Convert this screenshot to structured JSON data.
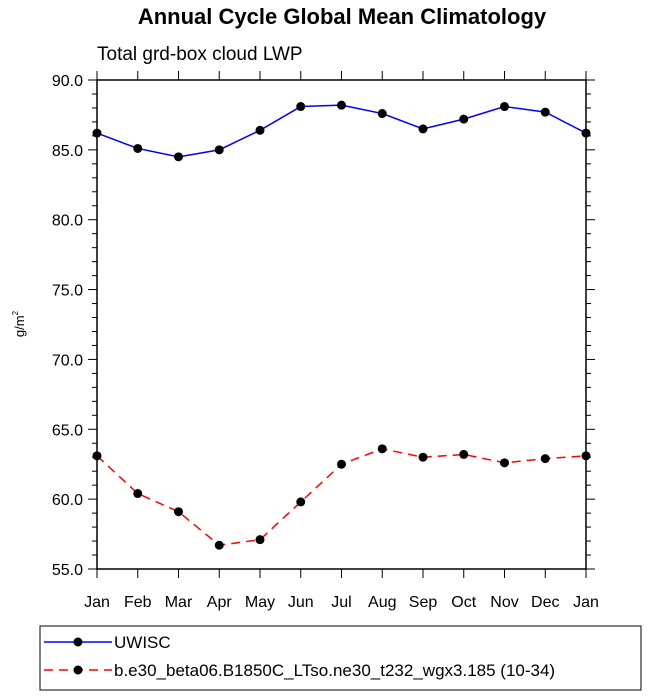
{
  "chart_data": {
    "type": "line",
    "title": "Annual Cycle Global Mean Climatology",
    "subtitle": "Total grd-box cloud LWP",
    "ylabel": "g/m",
    "ylabel_superscript": "2",
    "xlabel": "",
    "ylim": [
      55.0,
      90.0
    ],
    "yticks": [
      "55.0",
      "60.0",
      "65.0",
      "70.0",
      "75.0",
      "80.0",
      "85.0",
      "90.0"
    ],
    "categories": [
      "Jan",
      "Feb",
      "Mar",
      "Apr",
      "May",
      "Jun",
      "Jul",
      "Aug",
      "Sep",
      "Oct",
      "Nov",
      "Dec",
      "Jan"
    ],
    "grid": false,
    "legend_position": "bottom",
    "series": [
      {
        "name": "UWISC",
        "color": "#0000ff",
        "line_style": "solid",
        "marker": "filled-circle",
        "values": [
          86.2,
          85.1,
          84.5,
          85.0,
          86.4,
          88.1,
          88.2,
          87.6,
          86.5,
          87.2,
          88.1,
          87.7,
          86.2
        ]
      },
      {
        "name": "b.e30_beta06.B1850C_LTso.ne30_t232_wgx3.185 (10-34)",
        "color": "#ff0000",
        "line_style": "dashed",
        "marker": "filled-circle",
        "values": [
          63.1,
          60.4,
          59.1,
          56.7,
          57.1,
          59.8,
          62.5,
          63.6,
          63.0,
          63.2,
          62.6,
          62.9,
          63.1
        ]
      }
    ]
  }
}
